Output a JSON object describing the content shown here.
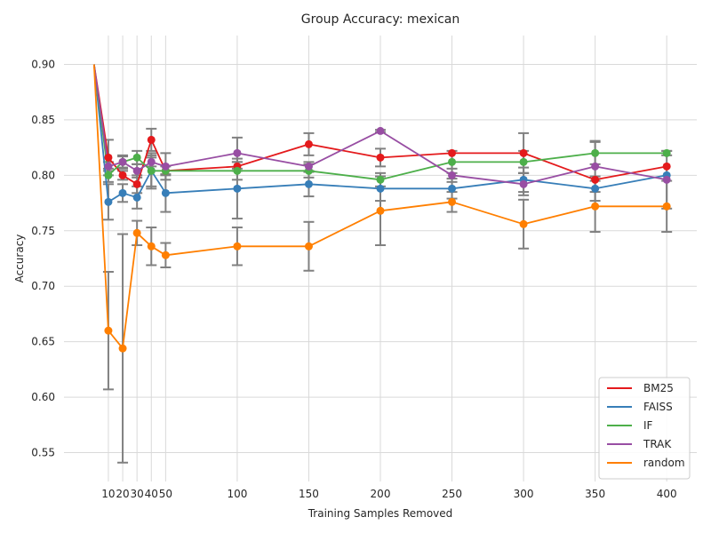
{
  "chart_data": {
    "type": "line",
    "title": "Group Accuracy: mexican",
    "xlabel": "Training Samples Removed",
    "ylabel": "Accuracy",
    "x_tick_values": [
      10,
      20,
      30,
      40,
      50,
      100,
      150,
      200,
      250,
      300,
      350,
      400
    ],
    "x_tick_labels": [
      "10",
      "20",
      "30",
      "40",
      "50",
      "100",
      "150",
      "200",
      "250",
      "300",
      "350",
      "400"
    ],
    "y_tick_values": [
      0.55,
      0.6,
      0.65,
      0.7,
      0.75,
      0.8,
      0.85,
      0.9
    ],
    "y_tick_labels": [
      "0.55",
      "0.60",
      "0.65",
      "0.70",
      "0.75",
      "0.80",
      "0.85",
      "0.90"
    ],
    "xlim": [
      -21,
      421
    ],
    "ylim": [
      0.524,
      0.926
    ],
    "grid": true,
    "legend_position": "bottom-right",
    "series": [
      {
        "name": "BM25",
        "color": "#e41a1c",
        "x": [
          0,
          10,
          20,
          30,
          40,
          50,
          100,
          150,
          200,
          250,
          300,
          350,
          400
        ],
        "y": [
          0.9,
          0.816,
          0.8,
          0.792,
          0.832,
          0.804,
          0.808,
          0.828,
          0.816,
          0.82,
          0.82,
          0.796,
          0.808
        ],
        "err": [
          null,
          0.016,
          0.004,
          0.008,
          0.01,
          null,
          0.004,
          0.01,
          0.008,
          null,
          0.018,
          null,
          null
        ]
      },
      {
        "name": "FAISS",
        "color": "#377eb8",
        "x": [
          0,
          10,
          20,
          30,
          40,
          50,
          100,
          150,
          200,
          250,
          300,
          350,
          400
        ],
        "y": [
          0.9,
          0.776,
          0.784,
          0.78,
          0.804,
          0.784,
          0.788,
          0.792,
          0.788,
          0.788,
          0.796,
          0.788,
          0.8
        ],
        "err": [
          null,
          0.016,
          0.008,
          0.01,
          0.016,
          0.017,
          0.027,
          0.011,
          0.011,
          0.009,
          0.011,
          0.011,
          null
        ]
      },
      {
        "name": "IF",
        "color": "#4daf4a",
        "x": [
          0,
          10,
          20,
          30,
          40,
          50,
          100,
          150,
          200,
          250,
          300,
          350,
          400
        ],
        "y": [
          0.9,
          0.8,
          0.812,
          0.816,
          0.804,
          0.804,
          0.804,
          0.804,
          0.796,
          0.812,
          0.812,
          0.82,
          0.82
        ],
        "err": [
          null,
          0.006,
          0.005,
          0.006,
          0.014,
          0.004,
          0.008,
          0.006,
          0.006,
          0.01,
          0.01,
          0.01,
          0.002
        ]
      },
      {
        "name": "TRAK",
        "color": "#984ea3",
        "x": [
          0,
          10,
          20,
          30,
          40,
          50,
          100,
          150,
          200,
          250,
          300,
          350,
          400
        ],
        "y": [
          0.9,
          0.808,
          0.812,
          0.804,
          0.812,
          0.808,
          0.82,
          0.808,
          0.84,
          0.8,
          0.792,
          0.808,
          0.796
        ],
        "err": [
          null,
          0.004,
          0.006,
          0.006,
          0.004,
          0.012,
          0.014,
          0.004,
          0.001,
          0.006,
          0.01,
          0.023,
          0.026
        ]
      },
      {
        "name": "random",
        "color": "#ff7f00",
        "x": [
          0,
          10,
          20,
          30,
          40,
          50,
          100,
          150,
          200,
          250,
          300,
          350,
          400
        ],
        "y": [
          0.9,
          0.66,
          0.644,
          0.748,
          0.736,
          0.728,
          0.736,
          0.736,
          0.768,
          0.776,
          0.756,
          0.772,
          0.772
        ],
        "err": [
          null,
          0.053,
          0.103,
          0.011,
          0.017,
          0.011,
          0.017,
          0.022,
          0.031,
          0.009,
          0.022,
          0.023,
          0.023
        ]
      }
    ]
  }
}
